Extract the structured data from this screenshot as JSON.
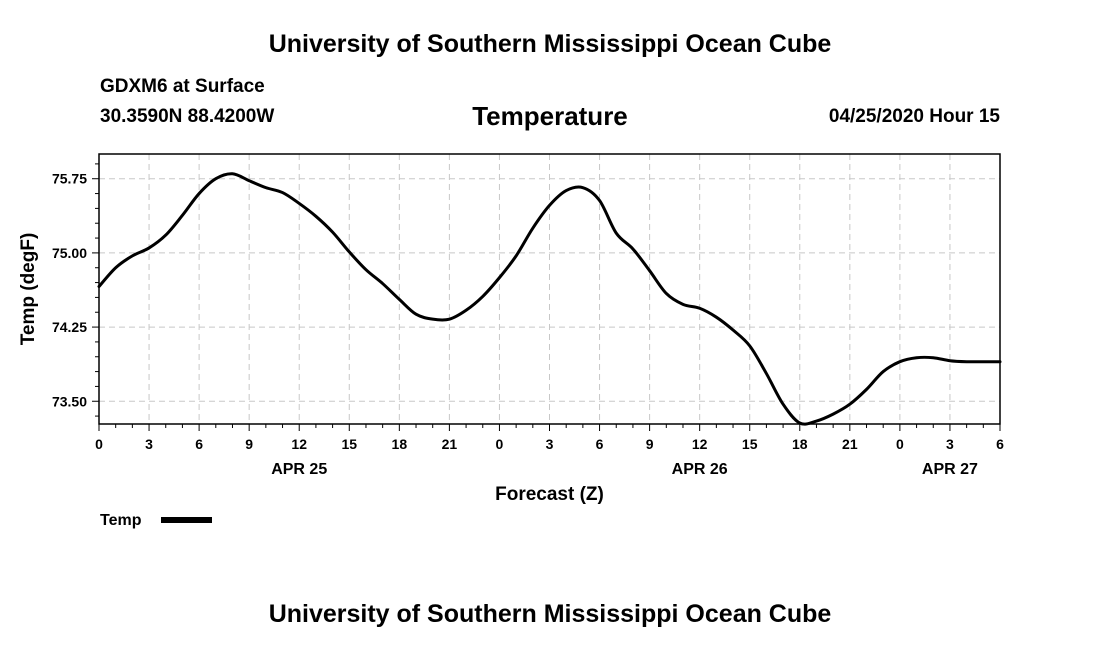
{
  "header": {
    "title": "University of Southern Mississippi Ocean Cube",
    "station": "GDXM6 at Surface",
    "coords": "30.3590N 88.4200W",
    "run_time": "04/25/2020 Hour 15"
  },
  "footer": {
    "title": "University of Southern Mississippi Ocean Cube"
  },
  "chart_data": {
    "type": "line",
    "title": "Temperature",
    "xlabel": "Forecast (Z)",
    "ylabel": "Temp (degF)",
    "ylim": [
      73.27,
      76.0
    ],
    "xlim": [
      0,
      54
    ],
    "grid": true,
    "x_tick_labels": [
      "0",
      "3",
      "6",
      "9",
      "12",
      "15",
      "18",
      "21",
      "0",
      "3",
      "6",
      "9",
      "12",
      "15",
      "18",
      "21",
      "0",
      "3",
      "6"
    ],
    "y_ticks": [
      73.5,
      74.25,
      75.0,
      75.75
    ],
    "y_tick_labels": [
      "73.50",
      "74.25",
      "75.00",
      "75.75"
    ],
    "day_labels": [
      {
        "label": "APR 25",
        "hour": 12
      },
      {
        "label": "APR 26",
        "hour": 36
      },
      {
        "label": "APR 27",
        "hour": 51
      }
    ],
    "legend": {
      "position": "bottom-left",
      "label": "Temp"
    },
    "series": [
      {
        "name": "Temp",
        "color": "#000000",
        "x": [
          0,
          1,
          2,
          3,
          4,
          5,
          6,
          7,
          8,
          9,
          10,
          11,
          12,
          13,
          14,
          15,
          16,
          17,
          18,
          19,
          20,
          21,
          22,
          23,
          24,
          25,
          26,
          27,
          28,
          29,
          30,
          31,
          32,
          33,
          34,
          35,
          36,
          37,
          38,
          39,
          40,
          41,
          42,
          43,
          44,
          45,
          46,
          47,
          48,
          49,
          50,
          51,
          52,
          53,
          54
        ],
        "y": [
          74.66,
          74.85,
          74.97,
          75.05,
          75.18,
          75.38,
          75.6,
          75.75,
          75.8,
          75.73,
          75.66,
          75.61,
          75.5,
          75.37,
          75.21,
          75.01,
          74.83,
          74.69,
          74.53,
          74.38,
          74.33,
          74.33,
          74.42,
          74.56,
          74.75,
          74.97,
          75.25,
          75.48,
          75.63,
          75.66,
          75.53,
          75.2,
          75.04,
          74.82,
          74.59,
          74.48,
          74.44,
          74.35,
          74.22,
          74.06,
          73.78,
          73.47,
          73.28,
          73.3,
          73.37,
          73.47,
          73.62,
          73.8,
          73.9,
          73.94,
          73.94,
          73.91,
          73.9,
          73.9,
          73.9
        ]
      }
    ]
  }
}
